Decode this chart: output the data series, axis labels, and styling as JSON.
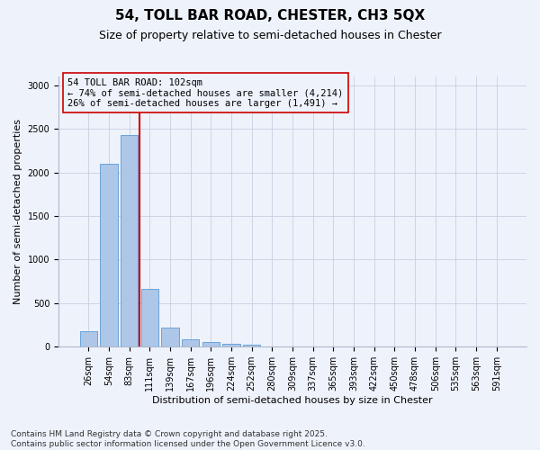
{
  "title1": "54, TOLL BAR ROAD, CHESTER, CH3 5QX",
  "title2": "Size of property relative to semi-detached houses in Chester",
  "xlabel": "Distribution of semi-detached houses by size in Chester",
  "ylabel": "Number of semi-detached properties",
  "categories": [
    "26sqm",
    "54sqm",
    "83sqm",
    "111sqm",
    "139sqm",
    "167sqm",
    "196sqm",
    "224sqm",
    "252sqm",
    "280sqm",
    "309sqm",
    "337sqm",
    "365sqm",
    "393sqm",
    "422sqm",
    "450sqm",
    "478sqm",
    "506sqm",
    "535sqm",
    "563sqm",
    "591sqm"
  ],
  "bar_heights": [
    175,
    2100,
    2430,
    660,
    215,
    85,
    50,
    35,
    20,
    5,
    0,
    0,
    0,
    0,
    0,
    0,
    0,
    0,
    0,
    0,
    0
  ],
  "bar_color": "#aec6e8",
  "bar_edge_color": "#5b9bd5",
  "vline_x_index": 3,
  "vline_color": "#cc0000",
  "annotation_box_text": "54 TOLL BAR ROAD: 102sqm\n← 74% of semi-detached houses are smaller (4,214)\n26% of semi-detached houses are larger (1,491) →",
  "annotation_box_color": "#cc0000",
  "ylim": [
    0,
    3100
  ],
  "yticks": [
    0,
    500,
    1000,
    1500,
    2000,
    2500,
    3000
  ],
  "background_color": "#eef2fb",
  "footer_line1": "Contains HM Land Registry data © Crown copyright and database right 2025.",
  "footer_line2": "Contains public sector information licensed under the Open Government Licence v3.0.",
  "grid_color": "#c8cfe0",
  "title1_fontsize": 11,
  "title2_fontsize": 9,
  "xlabel_fontsize": 8,
  "ylabel_fontsize": 8,
  "tick_fontsize": 7,
  "annotation_fontsize": 7.5,
  "footer_fontsize": 6.5
}
